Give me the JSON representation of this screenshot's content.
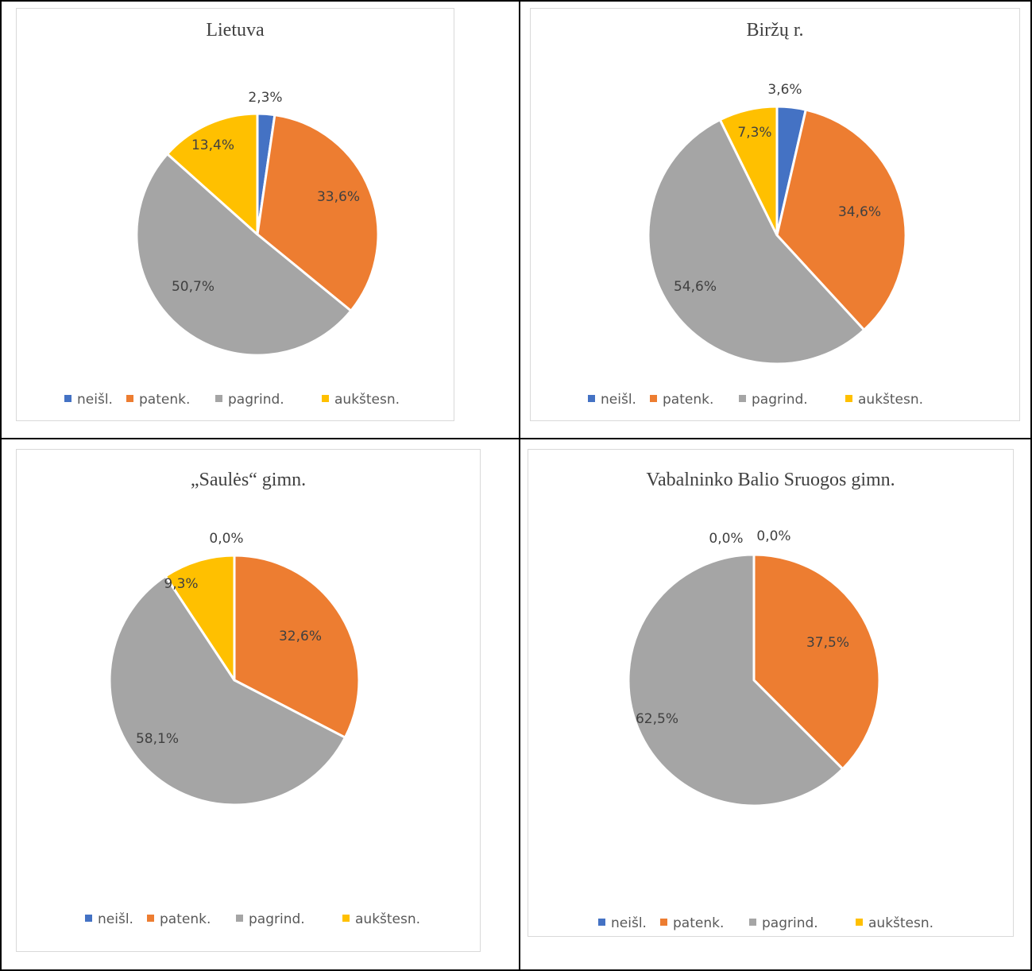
{
  "chart_data": [
    {
      "type": "pie",
      "title": "Lietuva",
      "categories": [
        "neišl.",
        "patenk.",
        "pagrind.",
        "aukštesn."
      ],
      "values": [
        2.3,
        33.6,
        50.7,
        13.4
      ],
      "labels": [
        "2,3%",
        "33,6%",
        "50,7%",
        "13,4%"
      ],
      "legend": "bottom"
    },
    {
      "type": "pie",
      "title": "Biržų r.",
      "categories": [
        "neišl.",
        "patenk.",
        "pagrind.",
        "aukštesn."
      ],
      "values": [
        3.6,
        34.6,
        54.6,
        7.3
      ],
      "labels": [
        "3,6%",
        "34,6%",
        "54,6%",
        "7,3%"
      ],
      "legend": "bottom"
    },
    {
      "type": "pie",
      "title": "„Saulės“ gimn.",
      "categories": [
        "neišl.",
        "patenk.",
        "pagrind.",
        "aukštesn."
      ],
      "values": [
        0.0,
        32.6,
        58.1,
        9.3
      ],
      "labels": [
        "0,0%",
        "32,6%",
        "58,1%",
        "9,3%"
      ],
      "legend": "bottom"
    },
    {
      "type": "pie",
      "title": "Vabalninko Balio Sruogos gimn.",
      "categories": [
        "neišl.",
        "patenk.",
        "pagrind.",
        "aukštesn."
      ],
      "values": [
        0.0,
        37.5,
        62.5,
        0.0
      ],
      "labels": [
        "0,0%",
        "37,5%",
        "62,5%",
        "0,0%"
      ],
      "legend": "bottom"
    }
  ],
  "colors": {
    "neišl.": "#4472c4",
    "patenk.": "#ed7d31",
    "pagrind.": "#a5a5a5",
    "aukštesn.": "#ffc000"
  }
}
